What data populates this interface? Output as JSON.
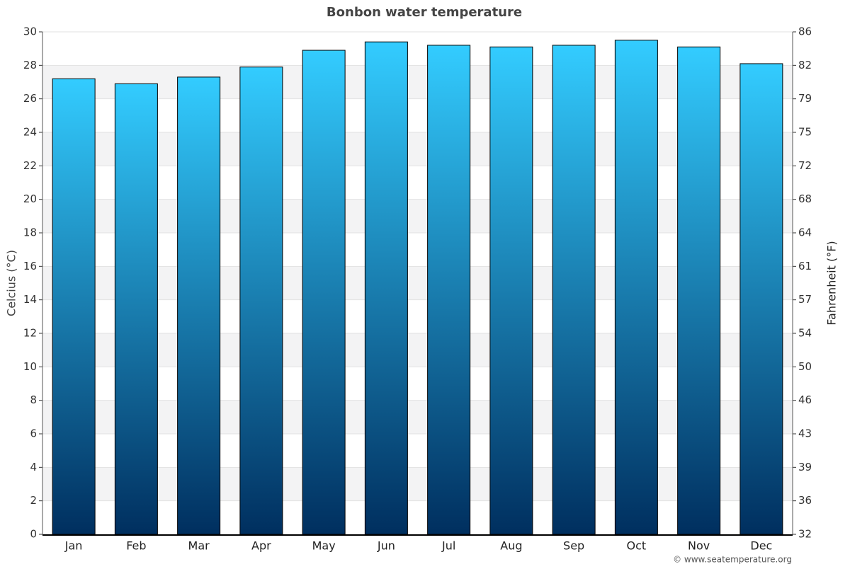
{
  "chart_data": {
    "type": "bar",
    "title": "Bonbon water temperature",
    "categories": [
      "Jan",
      "Feb",
      "Mar",
      "Apr",
      "May",
      "Jun",
      "Jul",
      "Aug",
      "Sep",
      "Oct",
      "Nov",
      "Dec"
    ],
    "values": [
      27.2,
      26.9,
      27.3,
      27.9,
      28.9,
      29.4,
      29.2,
      29.1,
      29.2,
      29.5,
      29.1,
      28.1
    ],
    "gradient": [
      "#33ccff",
      "#002f5f"
    ],
    "ylabel": "Celcius (°C)",
    "y2label": "Fahrenheit (°F)",
    "ylim": [
      0,
      30
    ],
    "yticks": [
      0,
      2,
      4,
      6,
      8,
      10,
      12,
      14,
      16,
      18,
      20,
      22,
      24,
      26,
      28,
      30
    ],
    "y2lim": [
      32,
      86
    ],
    "y2ticks": [
      32,
      {
        "value": 35.6,
        "label": "36"
      },
      {
        "value": 39.2,
        "label": "39"
      },
      {
        "value": 42.8,
        "label": "43"
      },
      {
        "value": 46.4,
        "label": "46"
      },
      50,
      {
        "value": 53.6,
        "label": "54"
      },
      {
        "value": 57.2,
        "label": "57"
      },
      {
        "value": 60.8,
        "label": "61"
      },
      {
        "value": 64.4,
        "label": "64"
      },
      68,
      {
        "value": 71.6,
        "label": "72"
      },
      {
        "value": 75.2,
        "label": "75"
      },
      {
        "value": 78.8,
        "label": "79"
      },
      {
        "value": 82.4,
        "label": "82"
      },
      86
    ],
    "grid": true,
    "source": "© www.seatemperature.org"
  }
}
